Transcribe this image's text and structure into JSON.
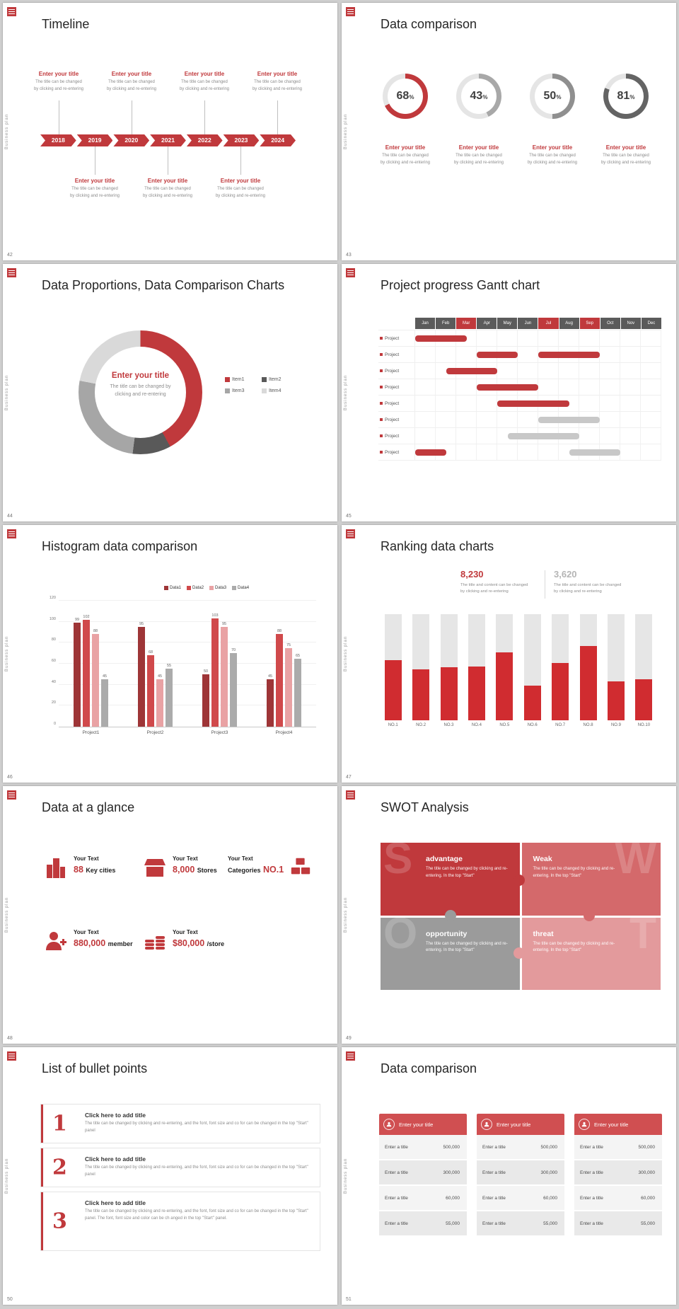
{
  "brand": {
    "sidebar_text": "Business plan",
    "accent": "#c0393c"
  },
  "slide42": {
    "number": "42",
    "title": "Timeline",
    "years": [
      "2018",
      "2019",
      "2020",
      "2021",
      "2022",
      "2023",
      "2024"
    ],
    "item": {
      "title": "Enter your title",
      "desc1": "The title can be changed",
      "desc2": "by clicking and re-entering"
    }
  },
  "slide43": {
    "number": "43",
    "title": "Data comparison",
    "unit": "%",
    "rings": [
      {
        "value": "68",
        "percent": 68,
        "color": "#c0393c"
      },
      {
        "value": "43",
        "percent": 43,
        "color": "#a8a8a8"
      },
      {
        "value": "50",
        "percent": 50,
        "color": "#8f8f8f"
      },
      {
        "value": "81",
        "percent": 81,
        "color": "#646464"
      }
    ],
    "item": {
      "title": "Enter your title",
      "desc1": "The title can be changed",
      "desc2": "by clicking and re-entering"
    }
  },
  "slide44": {
    "number": "44",
    "title": "Data Proportions, Data Comparison Charts",
    "center": {
      "title": "Enter your title",
      "desc1": "The title can be changed by",
      "desc2": "clicking and re-entering"
    },
    "chart_data": {
      "type": "pie",
      "labels": [
        "Item1",
        "Item2",
        "Item3",
        "Item4"
      ],
      "values": [
        42,
        10,
        26,
        22
      ],
      "colors": [
        "#c0393c",
        "#595959",
        "#a6a6a6",
        "#d9d9d9"
      ]
    }
  },
  "slide45": {
    "number": "45",
    "title": "Project progress Gantt chart",
    "chart_data": {
      "type": "gantt",
      "months": [
        "Jan",
        "Feb",
        "Mar",
        "Apr",
        "May",
        "Jun",
        "Jul",
        "Aug",
        "Sep",
        "Oct",
        "Nov",
        "Dec"
      ],
      "highlight_months": [
        "Mar",
        "Jul",
        "Sep"
      ],
      "rows": [
        {
          "label": "Project",
          "bars": [
            {
              "start": 0,
              "end": 2.5,
              "color": "#c0393c"
            }
          ]
        },
        {
          "label": "Project",
          "bars": [
            {
              "start": 3,
              "end": 5,
              "color": "#c0393c"
            },
            {
              "start": 6,
              "end": 9,
              "color": "#c0393c"
            }
          ]
        },
        {
          "label": "Project",
          "bars": [
            {
              "start": 1.5,
              "end": 4,
              "color": "#c0393c"
            }
          ]
        },
        {
          "label": "Project",
          "bars": [
            {
              "start": 3,
              "end": 6,
              "color": "#c0393c"
            }
          ]
        },
        {
          "label": "Project",
          "bars": [
            {
              "start": 4,
              "end": 7.5,
              "color": "#c0393c"
            }
          ]
        },
        {
          "label": "Project",
          "bars": [
            {
              "start": 6,
              "end": 9,
              "color": "#c8c8c8"
            }
          ]
        },
        {
          "label": "Project",
          "bars": [
            {
              "start": 4.5,
              "end": 8,
              "color": "#c8c8c8"
            }
          ]
        },
        {
          "label": "Project",
          "bars": [
            {
              "start": 0,
              "end": 1.5,
              "color": "#c0393c"
            },
            {
              "start": 7.5,
              "end": 10,
              "color": "#c8c8c8"
            }
          ]
        }
      ]
    }
  },
  "slide46": {
    "number": "46",
    "title": "Histogram data comparison",
    "chart_data": {
      "type": "bar",
      "categories": [
        "Project1",
        "Project2",
        "Project3",
        "Project4"
      ],
      "series": [
        {
          "name": "Data1",
          "color": "#9e3537",
          "values": [
            99,
            95,
            50,
            45
          ]
        },
        {
          "name": "Data2",
          "color": "#d0494b",
          "values": [
            102,
            68,
            103,
            88
          ]
        },
        {
          "name": "Data3",
          "color": "#e9a2a4",
          "values": [
            88,
            45,
            95,
            75
          ]
        },
        {
          "name": "Data4",
          "color": "#ababab",
          "values": [
            45,
            55,
            70,
            65
          ]
        }
      ],
      "ylim": [
        0,
        120
      ],
      "yticks": [
        0,
        20,
        40,
        60,
        80,
        100,
        120
      ]
    }
  },
  "slide47": {
    "number": "47",
    "title": "Ranking data charts",
    "stats": [
      {
        "value": "8,230",
        "color": "#c0393c",
        "desc1": "The title and content can be changed",
        "desc2": "by clicking and re-entering"
      },
      {
        "value": "3,620",
        "color": "#b5b5b5",
        "desc1": "The title and content can be changed",
        "desc2": "by clicking and re-entering"
      }
    ],
    "chart_data": {
      "type": "bar",
      "categories": [
        "NO.1",
        "NO.2",
        "NO.3",
        "NO.4",
        "NO.5",
        "NO.6",
        "NO.7",
        "NO.8",
        "NO.9",
        "NO.10"
      ],
      "values": [
        57,
        48,
        50,
        51,
        64,
        33,
        54,
        70,
        37,
        39
      ],
      "ylim": [
        0,
        100
      ],
      "track_color": "#e6e6e6",
      "bar_color": "#d02c30"
    }
  },
  "slide48": {
    "number": "48",
    "title": "Data at a glance",
    "items": [
      {
        "icon": "city-icon",
        "label": "Your Text",
        "pre": "",
        "value": "88",
        "post": "Key cities"
      },
      {
        "icon": "store-icon",
        "label": "Your Text",
        "pre": "",
        "value": "8,000",
        "post": "Stores"
      },
      {
        "icon": "categories-icon",
        "label": "Your Text",
        "pre": "Categories",
        "value": "NO.1",
        "post": ""
      },
      {
        "icon": "member-icon",
        "label": "Your Text",
        "pre": "",
        "value": "880,000",
        "post": "member"
      },
      {
        "icon": "coins-icon",
        "label": "Your Text",
        "pre": "",
        "value": "$80,000",
        "post": "/store"
      }
    ]
  },
  "slide49": {
    "number": "49",
    "title": "SWOT Analysis",
    "quadrants": [
      {
        "letter": "S",
        "label": "advantage",
        "color": "#c0393c",
        "desc": "The title can be changed by clicking and re-entering. In the top \"Start\""
      },
      {
        "letter": "W",
        "label": "Weak",
        "color": "#d4696b",
        "desc": "The title can be changed by clicking and re-entering. In the top \"Start\""
      },
      {
        "letter": "O",
        "label": "opportunity",
        "color": "#9b9b9b",
        "desc": "The title can be changed by clicking and re-entering. In the top \"Start\""
      },
      {
        "letter": "T",
        "label": "threat",
        "color": "#e39a9c",
        "desc": "The title can be changed by clicking and re-entering. In the top \"Start\""
      }
    ]
  },
  "slide50": {
    "number": "50",
    "title": "List of bullet points",
    "items": [
      {
        "num": "1",
        "title": "Click here to add title",
        "desc": "The title can be changed by clicking and re-entering, and the font, font size and co for can be changed in the top \"Start\" panel"
      },
      {
        "num": "2",
        "title": "Click here to add title",
        "desc": "The title can be changed by clicking and re-entering, and the font, font size and co for can be changed in the top \"Start\" panel"
      },
      {
        "num": "3",
        "title": "Click here to add title",
        "desc": "The title can be changed by clicking and re-entering, and the font, font size and co for can be changed in the top \"Start\" panel. The font, font size and color can be ch anged in the top \"Start\" panel."
      }
    ]
  },
  "slide51": {
    "number": "51",
    "title": "Data comparison",
    "tables": [
      {
        "header": "Enter your title",
        "icon": "person-edit-icon",
        "rows": [
          {
            "label": "Enter a title",
            "value": "500,000"
          },
          {
            "label": "Enter a title",
            "value": "300,000"
          },
          {
            "label": "Enter a title",
            "value": "60,000"
          },
          {
            "label": "Enter a title",
            "value": "55,000"
          }
        ]
      },
      {
        "header": "Enter your title",
        "icon": "person-icon",
        "rows": [
          {
            "label": "Enter a title",
            "value": "500,000"
          },
          {
            "label": "Enter a title",
            "value": "300,000"
          },
          {
            "label": "Enter a title",
            "value": "60,000"
          },
          {
            "label": "Enter a title",
            "value": "55,000"
          }
        ]
      },
      {
        "header": "Enter your title",
        "icon": "person-add-icon",
        "rows": [
          {
            "label": "Enter a title",
            "value": "500,000"
          },
          {
            "label": "Enter a title",
            "value": "300,000"
          },
          {
            "label": "Enter a title",
            "value": "60,000"
          },
          {
            "label": "Enter a title",
            "value": "55,000"
          }
        ]
      }
    ]
  }
}
